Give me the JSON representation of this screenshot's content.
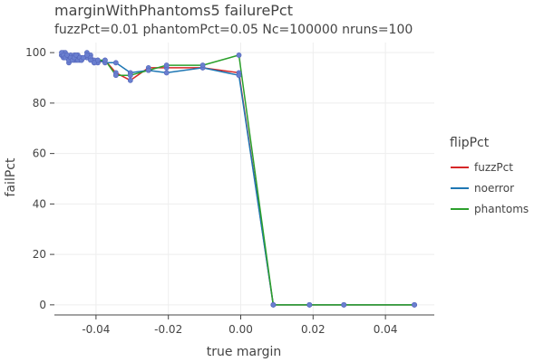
{
  "chart_data": {
    "type": "line",
    "title": "marginWithPhantoms5 failurePct",
    "subtitle": "fuzzPct=0.01 phantomPct=0.05 Nc=100000 nruns=100",
    "xlabel": "true margin",
    "ylabel": "failPct",
    "xlim": [
      -0.0515,
      0.0535
    ],
    "ylim": [
      -4,
      104
    ],
    "xticks": [
      -0.04,
      -0.02,
      0.0,
      0.02,
      0.04
    ],
    "xtick_labels": [
      "-0.04",
      "-0.02",
      "0.00",
      "0.02",
      "0.04"
    ],
    "yticks": [
      0,
      20,
      40,
      60,
      80,
      100
    ],
    "ytick_labels": [
      "0",
      "20",
      "40",
      "60",
      "80",
      "100"
    ],
    "grid": true,
    "legend_title": "flipPct",
    "legend_placement": "right",
    "series": [
      {
        "name": "fuzzPct",
        "color": "#d62728",
        "x": [
          -0.0495,
          -0.049,
          -0.0485,
          -0.048,
          -0.0475,
          -0.047,
          -0.0465,
          -0.046,
          -0.0455,
          -0.045,
          -0.0445,
          -0.044,
          -0.0435,
          -0.0425,
          -0.0415,
          -0.0405,
          -0.0395,
          -0.0375,
          -0.0345,
          -0.0305,
          -0.0255,
          -0.0205,
          -0.0105,
          -0.0005,
          0.009,
          0.019,
          0.0285,
          0.048
        ],
        "y": [
          99,
          100,
          99,
          98,
          97,
          99,
          98,
          97,
          98,
          99,
          98,
          97,
          98,
          98,
          99,
          97,
          96,
          97,
          92,
          89,
          94,
          94,
          94,
          92,
          0,
          0,
          0,
          0
        ]
      },
      {
        "name": "noerror",
        "color": "#1f77b4",
        "x": [
          -0.0495,
          -0.049,
          -0.0485,
          -0.048,
          -0.0475,
          -0.047,
          -0.0465,
          -0.046,
          -0.0455,
          -0.045,
          -0.0445,
          -0.044,
          -0.0435,
          -0.0425,
          -0.0415,
          -0.0405,
          -0.0395,
          -0.0375,
          -0.0345,
          -0.0305,
          -0.0255,
          -0.0205,
          -0.0105,
          -0.0005,
          0.009,
          0.019,
          0.0285,
          0.048
        ],
        "y": [
          99,
          98,
          100,
          99,
          96,
          97,
          98,
          99,
          97,
          98,
          97,
          98,
          98,
          100,
          98,
          96,
          97,
          96,
          96,
          92,
          93,
          92,
          94,
          91,
          0,
          0,
          0,
          0
        ]
      },
      {
        "name": "phantoms",
        "color": "#2ca02c",
        "x": [
          -0.0495,
          -0.049,
          -0.0485,
          -0.048,
          -0.0475,
          -0.047,
          -0.0465,
          -0.046,
          -0.0455,
          -0.045,
          -0.0445,
          -0.044,
          -0.0435,
          -0.0425,
          -0.0415,
          -0.0405,
          -0.0395,
          -0.0375,
          -0.0345,
          -0.0305,
          -0.0255,
          -0.0205,
          -0.0105,
          -0.0005,
          0.009,
          0.019,
          0.0285,
          0.048
        ],
        "y": [
          100,
          99,
          98,
          99,
          97,
          98,
          97,
          98,
          99,
          97,
          98,
          97,
          98,
          99,
          97,
          96,
          97,
          97,
          91,
          91,
          93,
          95,
          95,
          99,
          0,
          0,
          0,
          0
        ]
      }
    ],
    "marker_color": "#6a7fcf"
  }
}
